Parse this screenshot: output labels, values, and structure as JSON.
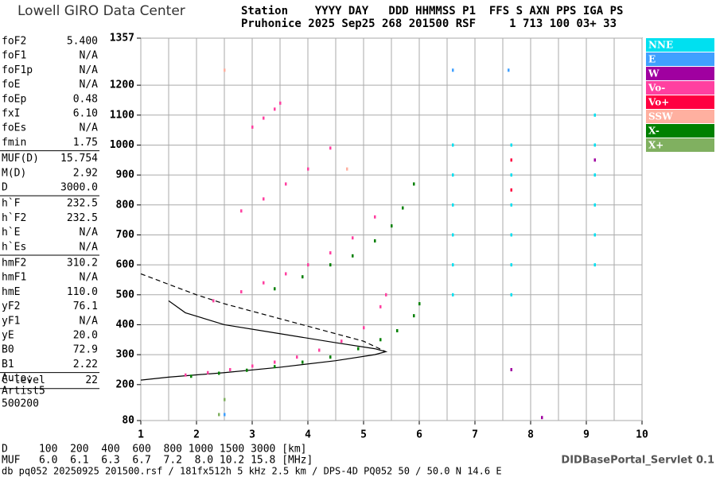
{
  "header": {
    "logo": "Lowell GIRO Data Center",
    "line1": "Station    YYYY DAY   DDD HHMMSS P1  FFS S AXN PPS IGA PS",
    "line2": "Pruhonice 2025 Sep25 268 201500 RSF     1 713 100 03+ 33"
  },
  "parameter_groups": [
    [
      [
        "foF2",
        "5.400"
      ],
      [
        "foF1",
        "N/A"
      ],
      [
        "foF1p",
        "N/A"
      ],
      [
        "foE",
        "N/A"
      ],
      [
        "foEp",
        "0.48"
      ],
      [
        "fxI",
        "6.10"
      ],
      [
        "foEs",
        "N/A"
      ],
      [
        "fmin",
        "1.75"
      ]
    ],
    [
      [
        "MUF(D)",
        "15.754"
      ],
      [
        "M(D)",
        "2.92"
      ],
      [
        "D",
        "3000.0"
      ]
    ],
    [
      [
        "h`F",
        "232.5"
      ],
      [
        "h`F2",
        "232.5"
      ],
      [
        "h`E",
        "N/A"
      ],
      [
        "h`Es",
        "N/A"
      ]
    ],
    [
      [
        "hmF2",
        "310.2"
      ],
      [
        "hmF1",
        "N/A"
      ],
      [
        "hmE",
        "110.0"
      ],
      [
        "yF2",
        "76.1"
      ],
      [
        "yF1",
        "N/A"
      ],
      [
        "yE",
        "20.0"
      ],
      [
        "B0",
        "72.9"
      ],
      [
        "B1",
        "2.22"
      ]
    ],
    [
      [
        "C-level",
        "22"
      ]
    ]
  ],
  "auto": [
    "Auto:",
    "Artist5",
    "500200"
  ],
  "bottom": {
    "d_row": "D     100  200  400  600  800 1000 1500 3000 [km]",
    "muf_row": "MUF   6.0  6.1  6.3  6.7  7.2  8.0 10.2 15.8 [MHz]",
    "footer": "db pq052 20250925 201500.rsf / 181fx512h 5 kHz 2.5 km / DPS-4D PQ052 50 / 50.0 N 14.6 E",
    "servlet": "DIDBasePortal_Servlet 0.1"
  },
  "chart_data": {
    "type": "scatter",
    "xlim": [
      1,
      10
    ],
    "xticks": [
      1,
      2,
      3,
      4,
      5,
      6,
      7,
      8,
      9,
      10
    ],
    "ylim": [
      80,
      1357
    ],
    "yticks": [
      80,
      200,
      300,
      400,
      500,
      600,
      700,
      800,
      900,
      1000,
      1100,
      1200,
      1357
    ],
    "grid": true,
    "series": [
      {
        "name": "NNE",
        "color": "#00e0f0",
        "x": [
          6.6,
          6.6,
          6.6,
          6.6,
          6.6,
          6.6,
          7.65,
          7.65,
          7.65,
          7.65,
          7.65,
          7.65,
          9.15,
          9.15,
          9.15,
          9.15,
          9.15,
          9.15
        ],
        "values": [
          500,
          600,
          700,
          800,
          900,
          1000,
          500,
          600,
          700,
          800,
          900,
          1000,
          600,
          700,
          800,
          900,
          1000,
          1100
        ]
      },
      {
        "name": "E",
        "color": "#40a0ff",
        "x": [
          2.5,
          6.6,
          7.6
        ],
        "values": [
          100,
          1250,
          1250
        ]
      },
      {
        "name": "W",
        "color": "#a000a0",
        "x": [
          7.65,
          8.2,
          9.15
        ],
        "values": [
          250,
          90,
          950
        ]
      },
      {
        "name": "Vo-",
        "color": "#ff40a0",
        "x": [
          1.8,
          2.2,
          2.6,
          3.0,
          3.4,
          3.8,
          4.2,
          4.6,
          5.0,
          5.3,
          5.4,
          2.3,
          2.8,
          3.2,
          3.6,
          4.0,
          4.4,
          4.8,
          5.2,
          2.8,
          3.2,
          3.6,
          4.0,
          4.4,
          3.0,
          3.2,
          3.4,
          3.5
        ],
        "values": [
          232,
          240,
          250,
          262,
          275,
          292,
          315,
          345,
          390,
          460,
          500,
          480,
          510,
          540,
          570,
          600,
          640,
          690,
          760,
          780,
          820,
          870,
          920,
          990,
          1060,
          1090,
          1120,
          1140
        ]
      },
      {
        "name": "Vo+",
        "color": "#ff0040",
        "x": [
          7.65,
          7.65
        ],
        "values": [
          850,
          950
        ]
      },
      {
        "name": "SSW",
        "color": "#ffb0a0",
        "x": [
          2.5,
          4.7
        ],
        "values": [
          1250,
          920
        ]
      },
      {
        "name": "X-",
        "color": "#008000",
        "x": [
          1.9,
          2.4,
          2.9,
          3.4,
          3.9,
          4.4,
          4.9,
          5.3,
          5.6,
          5.9,
          6.0,
          3.4,
          3.9,
          4.4,
          4.8,
          5.2,
          5.5,
          5.7,
          5.9
        ],
        "values": [
          228,
          238,
          248,
          260,
          275,
          292,
          320,
          350,
          380,
          430,
          470,
          520,
          560,
          600,
          630,
          680,
          730,
          790,
          870
        ]
      },
      {
        "name": "X+",
        "color": "#80b060",
        "x": [
          2.4,
          2.5
        ],
        "values": [
          100,
          150
        ]
      }
    ],
    "curves": [
      {
        "dashed": false,
        "x": [
          1.0,
          1.5,
          2.5,
          3.5,
          4.5,
          5.2,
          5.4,
          5.2,
          4.5,
          3.5,
          2.5,
          1.8,
          1.5
        ],
        "values": [
          215,
          225,
          240,
          258,
          280,
          300,
          310,
          320,
          340,
          370,
          400,
          440,
          480
        ]
      },
      {
        "dashed": true,
        "x": [
          1.0,
          1.5,
          2.0,
          2.5,
          3.0,
          3.5,
          4.0,
          4.5,
          5.0,
          5.4
        ],
        "values": [
          570,
          535,
          500,
          470,
          445,
          420,
          395,
          370,
          345,
          310
        ]
      }
    ]
  }
}
